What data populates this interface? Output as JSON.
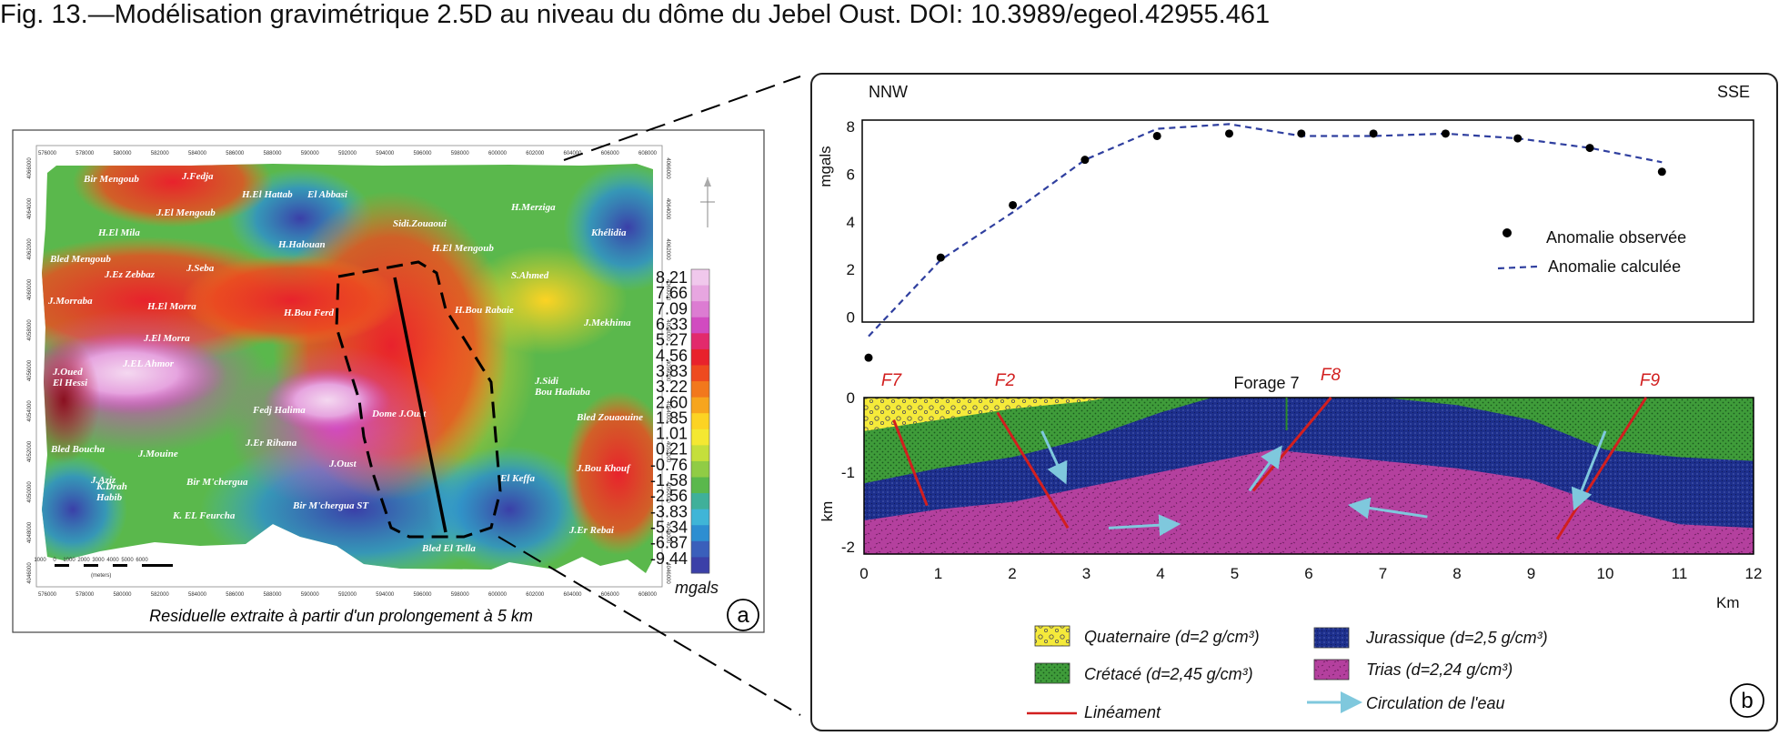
{
  "figure_title": "Fig. 13.—Modélisation gravimétrique 2.5D au niveau du dôme du Jebel Oust. DOI: 10.3989/egeol.42955.461",
  "panel_a": {
    "badge": "a",
    "caption": "Residuelle extraite à partir d'un prolongement à 5 km",
    "x_ticks": [
      "576000",
      "578000",
      "580000",
      "582000",
      "584000",
      "586000",
      "588000",
      "590000",
      "592000",
      "594000",
      "596000",
      "598000",
      "600000",
      "602000",
      "604000",
      "606000",
      "608000"
    ],
    "y_ticks": [
      "4066000",
      "4064000",
      "4062000",
      "4060000",
      "4058000",
      "4056000",
      "4054000",
      "4052000",
      "4050000",
      "4048000",
      "4046000"
    ],
    "scale_label": "(meters)",
    "scale_ticks": [
      "1000",
      "0",
      "1000",
      "2000",
      "3000",
      "4000",
      "5000",
      "6000"
    ],
    "colorbar": {
      "unit": "mgals",
      "labels": [
        "8.21",
        "7.66",
        "7.09",
        "6.33",
        "5.27",
        "4.56",
        "3.83",
        "3.22",
        "2.60",
        "1.85",
        "1.01",
        "0.21",
        "-0.76",
        "-1.58",
        "-2.56",
        "-3.83",
        "-5.34",
        "-6.87",
        "-9.44"
      ],
      "colors": [
        "#f0c8ec",
        "#e7a6e0",
        "#dc7cd2",
        "#d14bc0",
        "#e22a6c",
        "#e8222c",
        "#ee4a1f",
        "#f2781c",
        "#f7a51d",
        "#fcd323",
        "#f4e832",
        "#c5df3b",
        "#90cc45",
        "#5ab84c",
        "#3fb09a",
        "#3fb5d7",
        "#2d8ed1",
        "#3a5fbb",
        "#3b40a8"
      ]
    },
    "place_names": [
      "Bir Mengoub",
      "J.Fedja",
      "J.El Mengoub",
      "H.El Hattab",
      "El Abbasi",
      "H.El Mila",
      "H.Halouan",
      "Sidi.Zouaoui",
      "H.Merziga",
      "H.El Mengoub",
      "Khélidia",
      "Bled Mengoub",
      "J.Ez Zebbaz",
      "J.Seba",
      "S.Ahmed",
      "J.Morraba",
      "H.El Morra",
      "H.Bou Ferd",
      "H.Bou Rabaie",
      "J.Mekhima",
      "J.El Morra",
      "J.EL Ahmor",
      "J.Oued\nEl Hessi",
      "J.Sidi\nBou Hadiaba",
      "Fedj Halima",
      "Dome J.Oust",
      "Bled Zouaouine",
      "Bled Boucha",
      "J.Er Rihana",
      "J.Mouine",
      "J.Oust",
      "J.Bou Khouf",
      "J.Aziz",
      "Bir M'chergua",
      "El Keffa",
      "K.Drah\nHabib",
      "Bir M'chergua ST",
      "K. EL Feurcha",
      "J.Er Rebai",
      "Bled El Tella"
    ]
  },
  "panel_b": {
    "badge": "b",
    "nnw": "NNW",
    "sse": "SSE",
    "forage_label": "Forage 7",
    "faults": [
      "F7",
      "F2",
      "F8",
      "F9"
    ],
    "km_label": "km",
    "x_unit": "Km",
    "geo_legend": [
      {
        "label": "Quaternaire (d=2 g/cm³)",
        "color": "#f5ea3a"
      },
      {
        "label": "Crétacé (d=2,45 g/cm³)",
        "color": "#3f9c3a"
      },
      {
        "label": "Jurassique (d=2,5 g/cm³)",
        "color": "#1d2f8c"
      },
      {
        "label": "Trias (d=2,24 g/cm³)",
        "color": "#b4409e"
      },
      {
        "label": "Linéament",
        "color": "#d21f1f"
      },
      {
        "label": "Circulation de l'eau",
        "color": "#7fc8dd"
      }
    ]
  },
  "chart_data": [
    {
      "type": "scatter",
      "title": "",
      "xlabel": "",
      "ylabel": "mgals",
      "xlim": [
        0,
        12
      ],
      "ylim": [
        -1.7,
        8.2
      ],
      "y_ticks": [
        0,
        2,
        4,
        6,
        8
      ],
      "legend_position": "right",
      "series": [
        {
          "name": "Anomalie observée",
          "style": "markers",
          "color": "#000000",
          "x": [
            0.0,
            1.0,
            2.0,
            3.0,
            4.0,
            5.0,
            6.0,
            7.0,
            8.0,
            9.0,
            10.0,
            11.0
          ],
          "y": [
            -1.7,
            2.5,
            4.7,
            6.6,
            7.6,
            7.7,
            7.7,
            7.7,
            7.7,
            7.5,
            7.1,
            6.1
          ]
        },
        {
          "name": "Anomalie calculée",
          "style": "dashed-line",
          "color": "#2f3f9f",
          "x": [
            0.0,
            1.0,
            2.0,
            3.0,
            4.0,
            5.0,
            6.0,
            7.0,
            8.0,
            9.0,
            10.0,
            11.0
          ],
          "y": [
            -0.8,
            2.4,
            4.4,
            6.6,
            7.9,
            8.1,
            7.6,
            7.6,
            7.7,
            7.5,
            7.1,
            6.5
          ]
        }
      ]
    },
    {
      "type": "area",
      "title": "",
      "xlabel": "Km",
      "ylabel": "km",
      "xlim": [
        0,
        12
      ],
      "ylim": [
        -2.1,
        0
      ],
      "x_ticks": [
        0,
        1,
        2,
        3,
        4,
        5,
        6,
        7,
        8,
        9,
        10,
        11,
        12
      ],
      "y_ticks": [
        0,
        -1,
        -2
      ],
      "layers": [
        {
          "name": "Quaternaire (d=2 g/cm³)",
          "top_x": [
            0,
            12
          ],
          "top_y": [
            0,
            0
          ],
          "base_x": [
            0,
            1.0,
            2.0,
            3.0,
            3.3
          ],
          "base_y": [
            -0.45,
            -0.3,
            -0.15,
            -0.05,
            0
          ]
        },
        {
          "name": "Crétacé (d=2,45 g/cm³)",
          "base_x": [
            0,
            1,
            2,
            3,
            4,
            4.7,
            5,
            6,
            7,
            8,
            9,
            10,
            11,
            12
          ],
          "base_y": [
            -1.15,
            -0.95,
            -0.8,
            -0.55,
            -0.2,
            0,
            0,
            0,
            0,
            -0.1,
            -0.3,
            -0.7,
            -0.8,
            -0.85
          ]
        },
        {
          "name": "Jurassique (d=2,5 g/cm³)",
          "base_x": [
            0,
            1,
            2,
            3,
            4,
            5,
            5.5,
            6,
            7,
            8,
            9,
            10,
            11,
            12
          ],
          "base_y": [
            -1.65,
            -1.5,
            -1.4,
            -1.2,
            -1.0,
            -0.8,
            -0.7,
            -0.75,
            -0.85,
            -0.95,
            -1.1,
            -1.45,
            -1.7,
            -1.75
          ]
        },
        {
          "name": "Trias (d=2,24 g/cm³)",
          "base_x": [
            0,
            12
          ],
          "base_y": [
            -2.05,
            -2.05
          ]
        }
      ],
      "faults": [
        {
          "name": "F7",
          "x": [
            0.4,
            0.85
          ],
          "y": [
            -0.3,
            -1.45
          ]
        },
        {
          "name": "F2",
          "x": [
            1.8,
            2.75
          ],
          "y": [
            -0.2,
            -1.75
          ]
        },
        {
          "name": "F8",
          "x": [
            6.3,
            5.25
          ],
          "y": [
            0,
            -1.25
          ]
        },
        {
          "name": "F9",
          "x": [
            10.55,
            9.35
          ],
          "y": [
            0,
            -1.9
          ]
        }
      ],
      "water_arrows": [
        {
          "x": [
            2.4,
            2.7
          ],
          "y": [
            -0.45,
            -1.1
          ]
        },
        {
          "x": [
            3.3,
            4.2
          ],
          "y": [
            -1.75,
            -1.7
          ]
        },
        {
          "x": [
            5.2,
            5.6
          ],
          "y": [
            -1.25,
            -0.7
          ]
        },
        {
          "x": [
            7.6,
            6.6
          ],
          "y": [
            -1.6,
            -1.45
          ]
        },
        {
          "x": [
            10.0,
            9.6
          ],
          "y": [
            -0.45,
            -1.45
          ]
        }
      ],
      "annotations": [
        {
          "text": "Forage 7",
          "x": 5.7
        }
      ]
    }
  ]
}
